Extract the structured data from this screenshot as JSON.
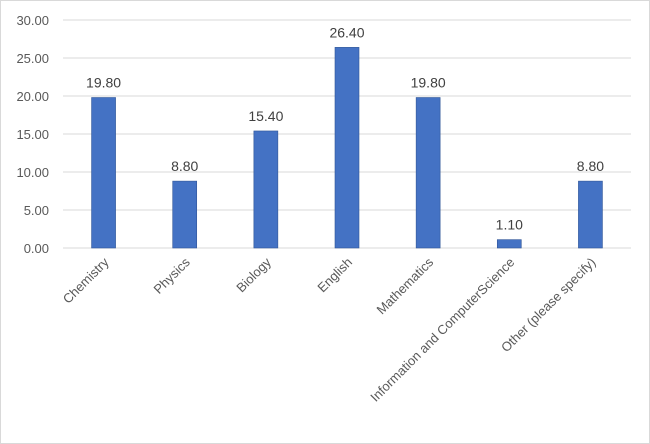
{
  "chart_data": {
    "type": "bar",
    "title": "",
    "xlabel": "",
    "ylabel": "",
    "categories": [
      "Chemistry",
      "Physics",
      "Biology",
      "English",
      "Mathematics",
      "Information and ComputerScience",
      "Other (please specify)"
    ],
    "values": [
      19.8,
      8.8,
      15.4,
      26.4,
      19.8,
      1.1,
      8.8
    ],
    "data_labels": [
      "19.80",
      "8.80",
      "15.40",
      "26.40",
      "19.80",
      "1.10",
      "8.80"
    ],
    "ylim": [
      0,
      30
    ],
    "yticks": [
      0,
      5,
      10,
      15,
      20,
      25,
      30
    ],
    "ytick_labels": [
      "0.00",
      "5.00",
      "10.00",
      "15.00",
      "20.00",
      "25.00",
      "30.00"
    ],
    "grid": true,
    "legend": "none",
    "colors": {
      "bar": "#4472c4",
      "bar_edge": "#2f5597",
      "grid": "#d9d9d9",
      "text": "#595959"
    }
  }
}
